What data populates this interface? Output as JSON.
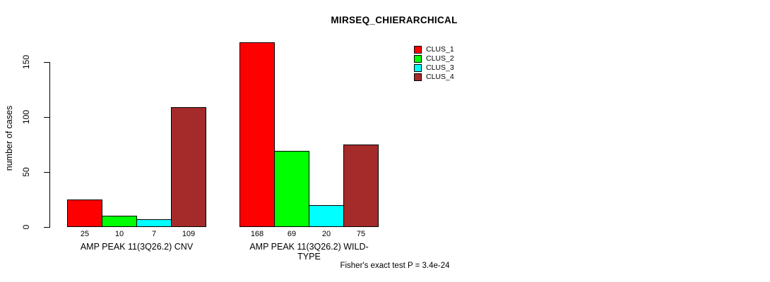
{
  "chart_data": {
    "type": "bar",
    "title": "MIRSEQ_CHIERARCHICAL",
    "ylabel": "number of cases",
    "xlabel": "",
    "categories": [
      "AMP PEAK 11(3Q26.2) CNV",
      "AMP PEAK 11(3Q26.2) WILD-TYPE"
    ],
    "series": [
      {
        "name": "CLUS_1",
        "color": "#FF0000",
        "values": [
          25,
          168
        ]
      },
      {
        "name": "CLUS_2",
        "color": "#00FF00",
        "values": [
          10,
          69
        ]
      },
      {
        "name": "CLUS_3",
        "color": "#00FFFF",
        "values": [
          7,
          20
        ]
      },
      {
        "name": "CLUS_4",
        "color": "#A52A2A",
        "values": [
          109,
          75
        ]
      }
    ],
    "yticks": [
      0,
      50,
      100,
      150
    ],
    "ylim": [
      0,
      170
    ],
    "grid": false,
    "legend_position": "top-right",
    "bar_value_labels_shown": true,
    "annotation": "Fisher's exact test P = 3.4e-24",
    "background_color": "#FFFFFF",
    "bar_border_color": "#000000"
  }
}
